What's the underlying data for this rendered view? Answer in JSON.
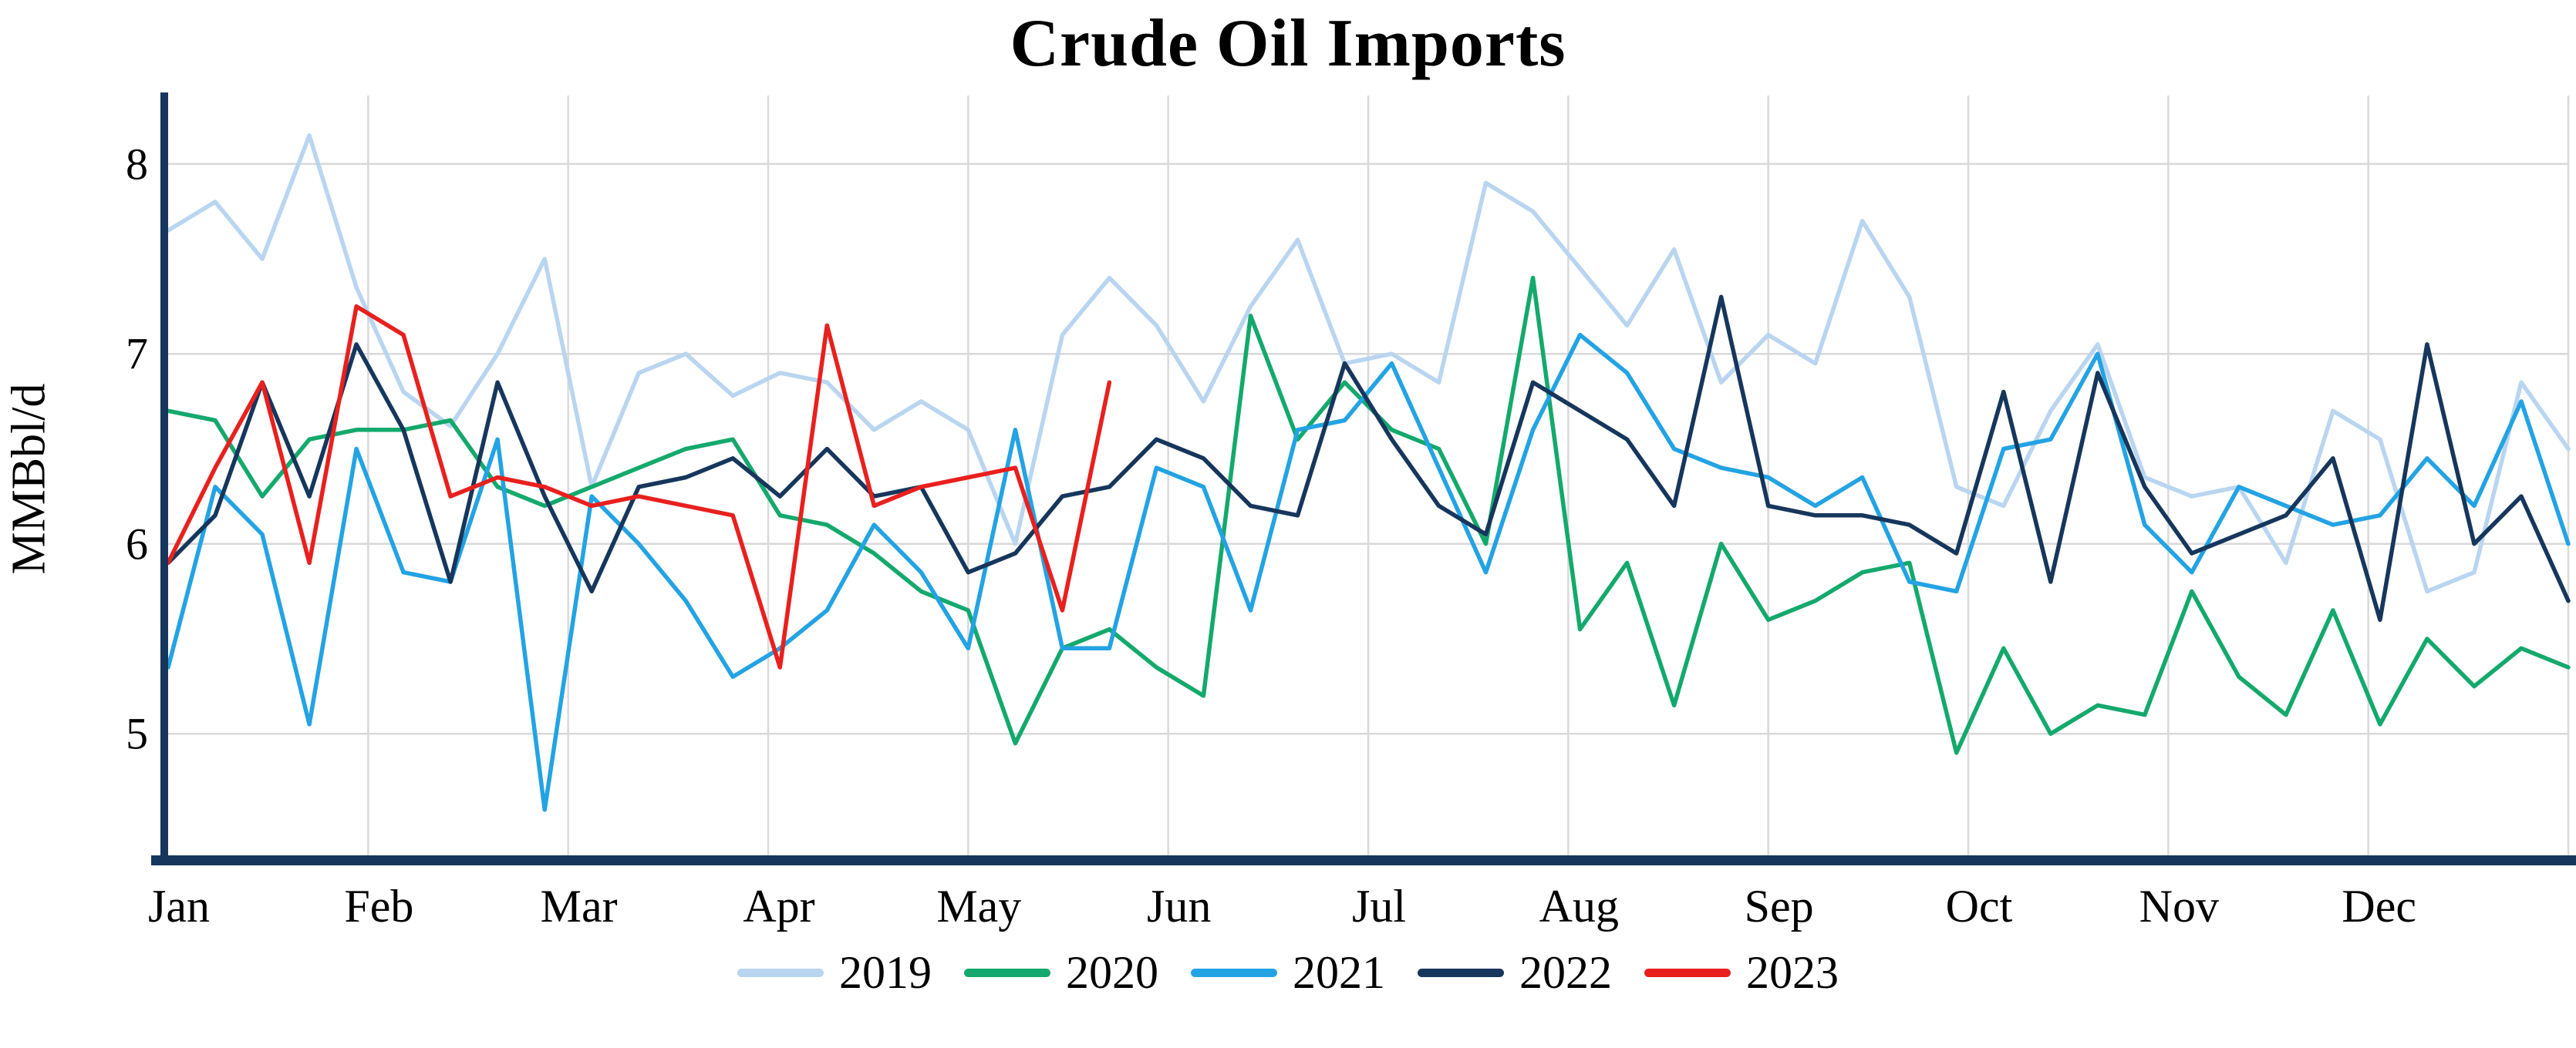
{
  "title": "Crude Oil Imports",
  "y_axis": {
    "label": "MMBbl/d",
    "ticks": [
      5,
      6,
      7,
      8
    ]
  },
  "x_axis": {
    "months": [
      "Jan",
      "Feb",
      "Mar",
      "Apr",
      "May",
      "Jun",
      "Jul",
      "Aug",
      "Sep",
      "Oct",
      "Nov",
      "Dec"
    ]
  },
  "colors": {
    "axis": "#16365c",
    "grid": "#d9d9d9",
    "background": "#ffffff",
    "text": "#000000"
  },
  "chart_data": {
    "type": "line",
    "title": "Crude Oil Imports",
    "xlabel": "",
    "ylabel": "MMBbl/d",
    "x_unit": "week-of-year",
    "weeks": 52,
    "ylim": [
      4.36,
      8.36
    ],
    "yticks": [
      5,
      6,
      7,
      8
    ],
    "grid": true,
    "legend_position": "bottom",
    "month_labels": [
      "Jan",
      "Feb",
      "Mar",
      "Apr",
      "May",
      "Jun",
      "Jul",
      "Aug",
      "Sep",
      "Oct",
      "Nov",
      "Dec"
    ],
    "series": [
      {
        "name": "2019",
        "color": "#b9d5f0",
        "values": [
          7.65,
          7.8,
          7.5,
          8.15,
          7.35,
          6.8,
          6.62,
          7.0,
          7.5,
          6.3,
          6.9,
          7.0,
          6.78,
          6.9,
          6.85,
          6.6,
          6.75,
          6.6,
          6.0,
          7.1,
          7.4,
          7.15,
          6.75,
          7.25,
          7.6,
          6.95,
          7.0,
          6.85,
          7.9,
          7.75,
          7.45,
          7.15,
          7.55,
          6.85,
          7.1,
          6.95,
          7.7,
          7.3,
          6.3,
          6.2,
          6.7,
          7.05,
          6.35,
          6.25,
          6.3,
          5.9,
          6.7,
          6.55,
          5.75,
          5.85,
          6.85,
          6.5
        ]
      },
      {
        "name": "2020",
        "color": "#14a96c",
        "values": [
          6.7,
          6.65,
          6.25,
          6.55,
          6.6,
          6.6,
          6.65,
          6.3,
          6.2,
          6.3,
          6.4,
          6.5,
          6.55,
          6.15,
          6.1,
          5.95,
          5.75,
          5.65,
          4.95,
          5.45,
          5.55,
          5.35,
          5.2,
          7.2,
          6.55,
          6.85,
          6.6,
          6.5,
          6.0,
          7.4,
          5.55,
          5.9,
          5.15,
          6.0,
          5.6,
          5.7,
          5.85,
          5.9,
          4.9,
          5.45,
          5.0,
          5.15,
          5.1,
          5.75,
          5.3,
          5.1,
          5.65,
          5.05,
          5.5,
          5.25,
          5.45,
          5.35
        ]
      },
      {
        "name": "2021",
        "color": "#23a3e3",
        "values": [
          5.35,
          6.3,
          6.05,
          5.05,
          6.5,
          5.85,
          5.8,
          6.55,
          4.6,
          6.25,
          6.0,
          5.7,
          5.3,
          5.45,
          5.65,
          6.1,
          5.85,
          5.45,
          6.6,
          5.45,
          5.45,
          6.4,
          6.3,
          5.65,
          6.6,
          6.65,
          6.95,
          6.4,
          5.85,
          6.6,
          7.1,
          6.9,
          6.5,
          6.4,
          6.35,
          6.2,
          6.35,
          5.8,
          5.75,
          6.5,
          6.55,
          7.0,
          6.1,
          5.85,
          6.3,
          6.2,
          6.1,
          6.15,
          6.45,
          6.2,
          6.75,
          6.0
        ]
      },
      {
        "name": "2022",
        "color": "#16365c",
        "values": [
          5.9,
          6.15,
          6.85,
          6.25,
          7.05,
          6.6,
          5.8,
          6.85,
          6.25,
          5.75,
          6.3,
          6.35,
          6.45,
          6.25,
          6.5,
          6.25,
          6.3,
          5.85,
          5.95,
          6.25,
          6.3,
          6.55,
          6.45,
          6.2,
          6.15,
          6.95,
          6.55,
          6.2,
          6.05,
          6.85,
          6.7,
          6.55,
          6.2,
          7.3,
          6.2,
          6.15,
          6.15,
          6.1,
          5.95,
          6.8,
          5.8,
          6.9,
          6.3,
          5.95,
          6.05,
          6.15,
          6.45,
          5.6,
          7.05,
          6.0,
          6.25,
          5.7
        ]
      },
      {
        "name": "2023",
        "color": "#e8201e",
        "values": [
          5.9,
          6.4,
          6.85,
          5.9,
          7.25,
          7.1,
          6.25,
          6.35,
          6.3,
          6.2,
          6.25,
          6.2,
          6.15,
          5.35,
          7.15,
          6.2,
          6.3,
          6.35,
          6.4,
          5.65,
          6.85
        ]
      }
    ]
  }
}
